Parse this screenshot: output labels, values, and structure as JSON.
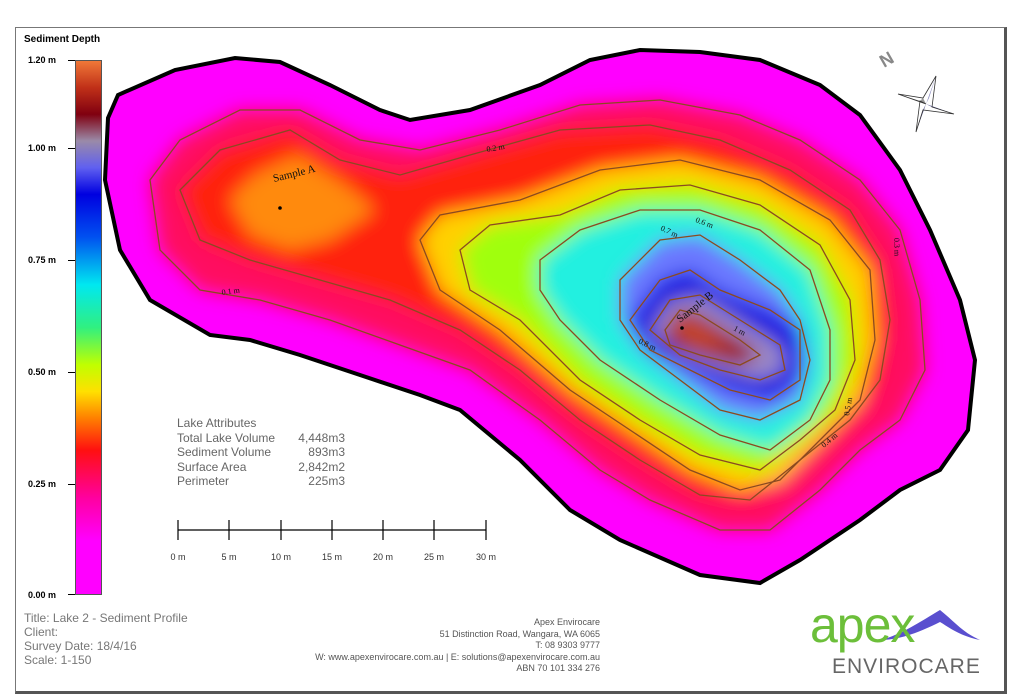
{
  "legend": {
    "title": "Sediment Depth",
    "ticks": [
      "1.20 m",
      "1.00 m",
      "0.75 m",
      "0.50 m",
      "0.25 m",
      "0.00 m"
    ],
    "range_m": [
      0,
      1.2
    ]
  },
  "map": {
    "samples": [
      "Sample A",
      "Sample B"
    ],
    "contours": [
      "0.1 m",
      "0.2 m",
      "0.3 m",
      "0.4 m",
      "0.5 m",
      "0.6 m",
      "0.7 m",
      "0.8 m",
      "1 m"
    ],
    "north_label": "N",
    "colors": {
      "shallow": "#ff00ff",
      "mid": "#ffff00",
      "deep": "#0000ff",
      "deepest": "#8b0000",
      "contour": "#8b4513",
      "shore": "#000000"
    }
  },
  "attributes": {
    "title": "Lake Attributes",
    "rows": [
      {
        "label": "Total Lake Volume",
        "value": "4,448m3"
      },
      {
        "label": "Sediment Volume",
        "value": "893m3"
      },
      {
        "label": "Surface Area",
        "value": "2,842m2"
      },
      {
        "label": "Perimeter",
        "value": "225m3"
      }
    ]
  },
  "scale_bar": {
    "labels": [
      "0 m",
      "5 m",
      "10 m",
      "15 m",
      "20 m",
      "25 m",
      "30 m"
    ]
  },
  "title_block": {
    "title": "Title: Lake 2 - Sediment Profile",
    "client": "Client:",
    "survey_date": "Survey Date: 18/4/16",
    "scale": "Scale: 1-150"
  },
  "contact": {
    "company": "Apex Envirocare",
    "address": "51 Distinction Road, Wangara, WA 6065",
    "phone": "T: 08 9303 9777",
    "web_email": "W: www.apexenvirocare.com.au  |  E: solutions@apexenvirocare.com.au",
    "abn": "ABN 70 101 334 276"
  },
  "logo": {
    "word1": "apex",
    "word2": "ENVIROCARE",
    "colors": {
      "green": "#6cbf3a",
      "purple": "#5a4fcf"
    }
  }
}
